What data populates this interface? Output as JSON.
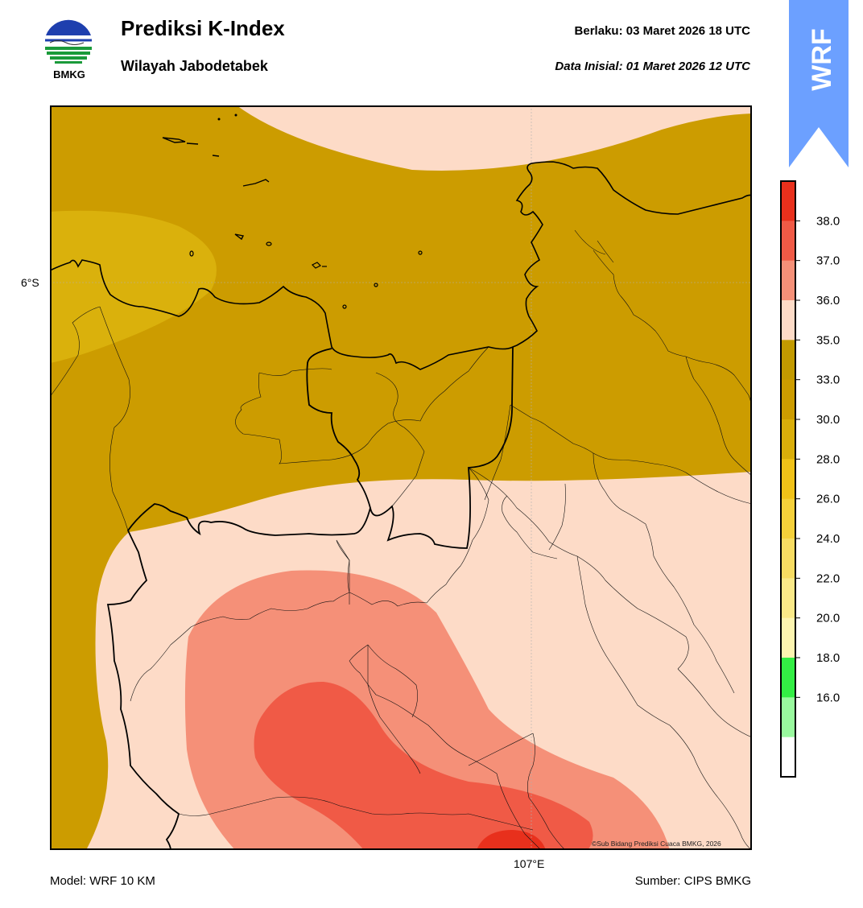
{
  "logo": {
    "text": "BMKG"
  },
  "header": {
    "title": "Prediksi K-Index",
    "region": "Wilayah Jabodetabek",
    "valid_label": "Berlaku:",
    "valid_time": "03 Maret 2026 18 UTC",
    "init_label": "Data Inisial:",
    "init_time": "01 Maret 2026 12 UTC"
  },
  "badge": {
    "text": "WRF",
    "color": "#6ca0ff"
  },
  "map": {
    "lat_label": "6°S",
    "lon_label": "107°E",
    "copyright": "©Sub Bidang Prediksi Cuaca BMKG, 2026"
  },
  "colorbar": {
    "ticks": [
      "38.0",
      "37.0",
      "36.0",
      "35.0",
      "33.0",
      "30.0",
      "28.0",
      "26.0",
      "24.0",
      "22.0",
      "20.0",
      "18.0",
      "16.0"
    ],
    "colors": [
      "#e8301c",
      "#f05a46",
      "#f59078",
      "#fddbc7",
      "#c29a00",
      "#cc9c00",
      "#d9ae0a",
      "#f0c218",
      "#f4d03a",
      "#f7dc62",
      "#fae988",
      "#fdf5b0",
      "#33ee44",
      "#99f99e",
      "#ffffff"
    ]
  },
  "footer": {
    "model": "Model: WRF 10 KM",
    "source": "Sumber: CIPS BMKG"
  }
}
